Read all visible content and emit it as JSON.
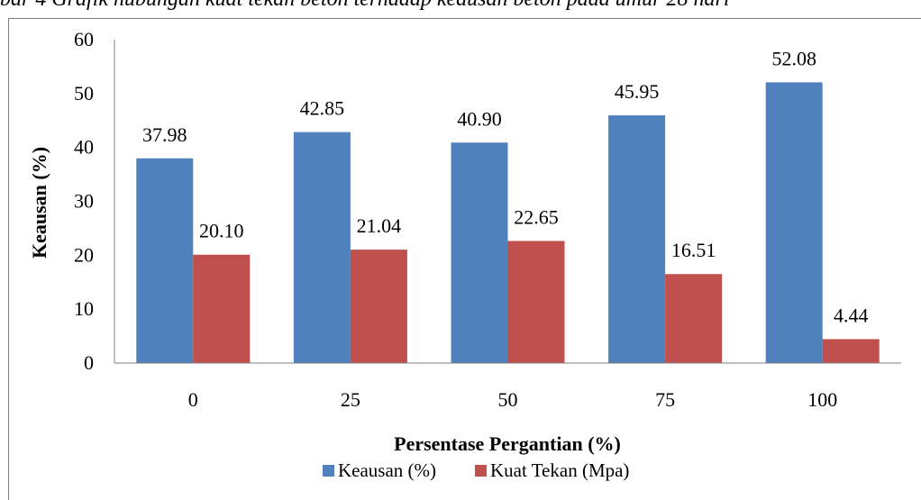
{
  "caption": "bar 4 Grafik hubungan kuat tekan beton terhadap keausan beton pada umur 28 hari",
  "chart_data": {
    "type": "bar",
    "categories": [
      "0",
      "25",
      "50",
      "75",
      "100"
    ],
    "series": [
      {
        "name": "Keausan (%)",
        "color": "#4f81bd",
        "values": [
          37.98,
          42.85,
          40.9,
          45.95,
          52.08
        ],
        "labels": [
          "37.98",
          "42.85",
          "40.90",
          "45.95",
          "52.08"
        ]
      },
      {
        "name": "Kuat Tekan (Mpa)",
        "color": "#c0504d",
        "values": [
          20.1,
          21.04,
          22.65,
          16.51,
          4.44
        ],
        "labels": [
          "20.10",
          "21.04",
          "22.65",
          "16.51",
          "4.44"
        ]
      }
    ],
    "yticks": [
      "0",
      "10",
      "20",
      "30",
      "40",
      "50",
      "60"
    ],
    "ylim": [
      0,
      60
    ],
    "xlabel": "Persentase Pergantian (%)",
    "ylabel": "Keausan (%)",
    "grid": false,
    "legend_position": "bottom"
  }
}
